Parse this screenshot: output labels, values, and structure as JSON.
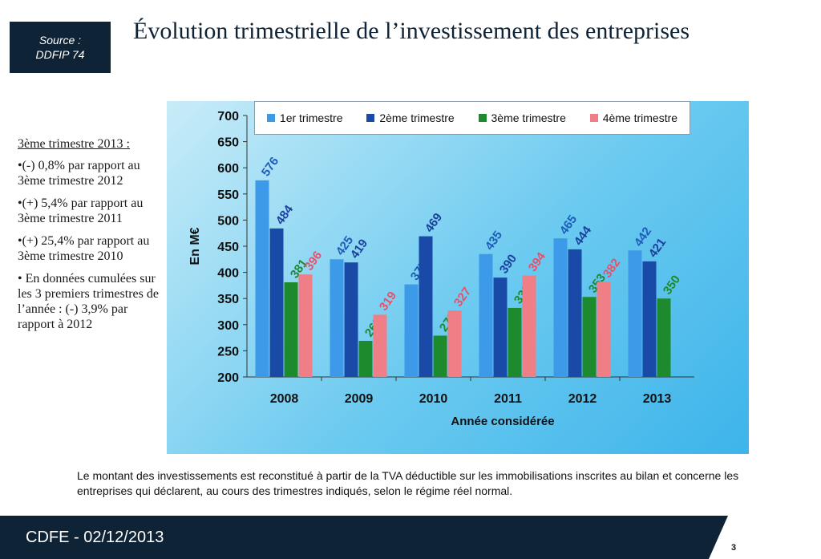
{
  "source": {
    "label": "Source :",
    "value": "DDFIP 74"
  },
  "title": "Évolution trimestrielle de l’investissement des entreprises",
  "sidebar": {
    "heading": "3ème trimestre 2013 :",
    "bullets": [
      "•(-) 0,8% par rapport au 3ème trimestre 2012",
      "•(+) 5,4% par rapport au 3ème trimestre 2011",
      "•(+) 25,4% par rapport au 3ème trimestre 2010",
      "• En données cumulées sur les 3 premiers trimestres de l’année : (-) 3,9% par rapport à 2012"
    ]
  },
  "chart_data": {
    "type": "bar",
    "categories": [
      "2008",
      "2009",
      "2010",
      "2011",
      "2012",
      "2013"
    ],
    "series": [
      {
        "name": "1er trimestre",
        "color": "#3d9ae8",
        "label_color": "#1d5cb8",
        "values": [
          576,
          425,
          377,
          435,
          465,
          442
        ]
      },
      {
        "name": "2ème trimestre",
        "color": "#1a4aa8",
        "label_color": "#1a3f9a",
        "values": [
          484,
          419,
          469,
          390,
          444,
          421
        ]
      },
      {
        "name": "3ème trimestre",
        "color": "#1e8a2e",
        "label_color": "#1e8a2e",
        "values": [
          381,
          269,
          279,
          332,
          353,
          350
        ]
      },
      {
        "name": "4ème trimestre",
        "color": "#f07e86",
        "label_color": "#e8506a",
        "values": [
          396,
          319,
          327,
          394,
          382,
          null
        ]
      }
    ],
    "ylabel": "En M€",
    "xlabel": "Année considérée",
    "ylim": [
      200,
      700
    ],
    "yticks": [
      200,
      250,
      300,
      350,
      400,
      450,
      500,
      550,
      600,
      650,
      700
    ],
    "legend_position": "top"
  },
  "footnote": "Le montant des investissements est reconstitué à partir de la TVA déductible sur les immobilisations inscrites au bilan et concerne les entreprises qui déclarent, au cours des trimestres indiqués, selon le régime réel normal.",
  "footer": {
    "text": "CDFE - 02/12/2013"
  },
  "page_number": "3"
}
